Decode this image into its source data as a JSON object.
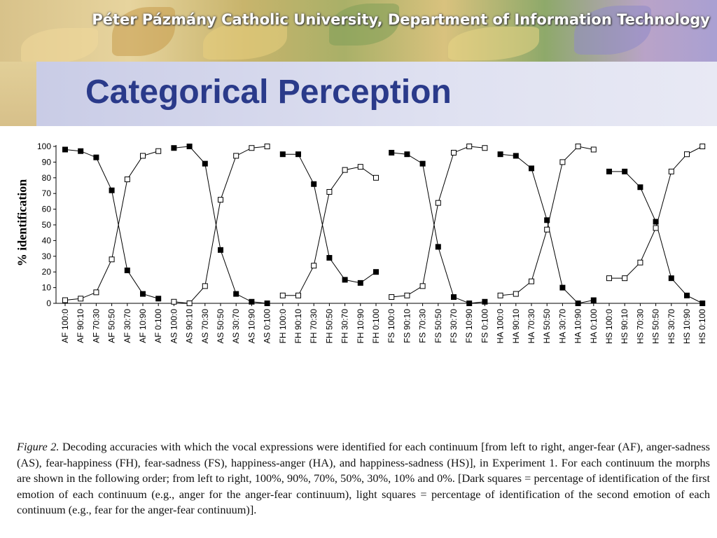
{
  "header": {
    "institution": "Péter Pázmány Catholic University, Department of Information Technology"
  },
  "slide": {
    "title": "Categorical Perception"
  },
  "chart_data": {
    "type": "line",
    "ylabel": "% identification",
    "xlabel": "",
    "ylim": [
      0,
      100
    ],
    "yticks": [
      0,
      10,
      20,
      30,
      40,
      50,
      60,
      70,
      80,
      90,
      100
    ],
    "grid": false,
    "legend": "none",
    "groups": [
      {
        "categories": [
          "AF 100:0",
          "AF 90:10",
          "AF 70:30",
          "AF 50:50",
          "AF 30:70",
          "AF 10:90",
          "AF 0:100"
        ],
        "series": [
          {
            "marker": "dark-square",
            "values": [
              98,
              97,
              93,
              72,
              21,
              6,
              3
            ]
          },
          {
            "marker": "light-square",
            "values": [
              2,
              3,
              7,
              28,
              79,
              94,
              97
            ]
          }
        ]
      },
      {
        "categories": [
          "AS 100:0",
          "AS 90:10",
          "AS 70:30",
          "AS 50:50",
          "AS 30:70",
          "AS 10:90",
          "AS 0:100"
        ],
        "series": [
          {
            "marker": "dark-square",
            "values": [
              99,
              100,
              89,
              34,
              6,
              1,
              0
            ]
          },
          {
            "marker": "light-square",
            "values": [
              1,
              0,
              11,
              66,
              94,
              99,
              100
            ]
          }
        ]
      },
      {
        "categories": [
          "FH 100:0",
          "FH 90:10",
          "FH 70:30",
          "FH 50:50",
          "FH 30:70",
          "FH 10:90",
          "FH 0:100"
        ],
        "series": [
          {
            "marker": "dark-square",
            "values": [
              95,
              95,
              76,
              29,
              15,
              13,
              20
            ]
          },
          {
            "marker": "light-square",
            "values": [
              5,
              5,
              24,
              71,
              85,
              87,
              80
            ]
          }
        ]
      },
      {
        "categories": [
          "FS 100:0",
          "FS 90:10",
          "FS 70:30",
          "FS 50:50",
          "FS 30:70",
          "FS 10:90",
          "FS 0:100"
        ],
        "series": [
          {
            "marker": "dark-square",
            "values": [
              96,
              95,
              89,
              36,
              4,
              0,
              1
            ]
          },
          {
            "marker": "light-square",
            "values": [
              4,
              5,
              11,
              64,
              96,
              100,
              99
            ]
          }
        ]
      },
      {
        "categories": [
          "HA 100:0",
          "HA 90:10",
          "HA 70:30",
          "HA 50:50",
          "HA 30:70",
          "HA 10:90",
          "HA 0:100"
        ],
        "series": [
          {
            "marker": "dark-square",
            "values": [
              95,
              94,
              86,
              53,
              10,
              0,
              2
            ]
          },
          {
            "marker": "light-square",
            "values": [
              5,
              6,
              14,
              47,
              90,
              100,
              98
            ]
          }
        ]
      },
      {
        "categories": [
          "HS 100:0",
          "HS 90:10",
          "HS 70:30",
          "HS 50:50",
          "HS 30:70",
          "HS 10:90",
          "HS 0:100"
        ],
        "series": [
          {
            "marker": "dark-square",
            "values": [
              84,
              84,
              74,
              52,
              16,
              5,
              0
            ]
          },
          {
            "marker": "light-square",
            "values": [
              16,
              16,
              26,
              48,
              84,
              95,
              100
            ]
          }
        ]
      }
    ]
  },
  "caption": {
    "label": "Figure 2.",
    "text": " Decoding accuracies with which the vocal expressions were identified for each continuum [from left to right, anger-fear (AF), anger-sadness (AS), fear-happiness (FH), fear-sadness (FS), happiness-anger (HA), and happiness-sadness (HS)], in Experiment 1. For each continuum the morphs are shown in the following order; from left to right, 100%, 90%, 70%, 50%, 30%, 10% and 0%. [Dark squares = percentage of identification of the first emotion of each continuum (e.g., anger for the anger-fear continuum), light squares = percentage of identification of the second emotion of each continuum (e.g., fear for the anger-fear continuum)]."
  }
}
